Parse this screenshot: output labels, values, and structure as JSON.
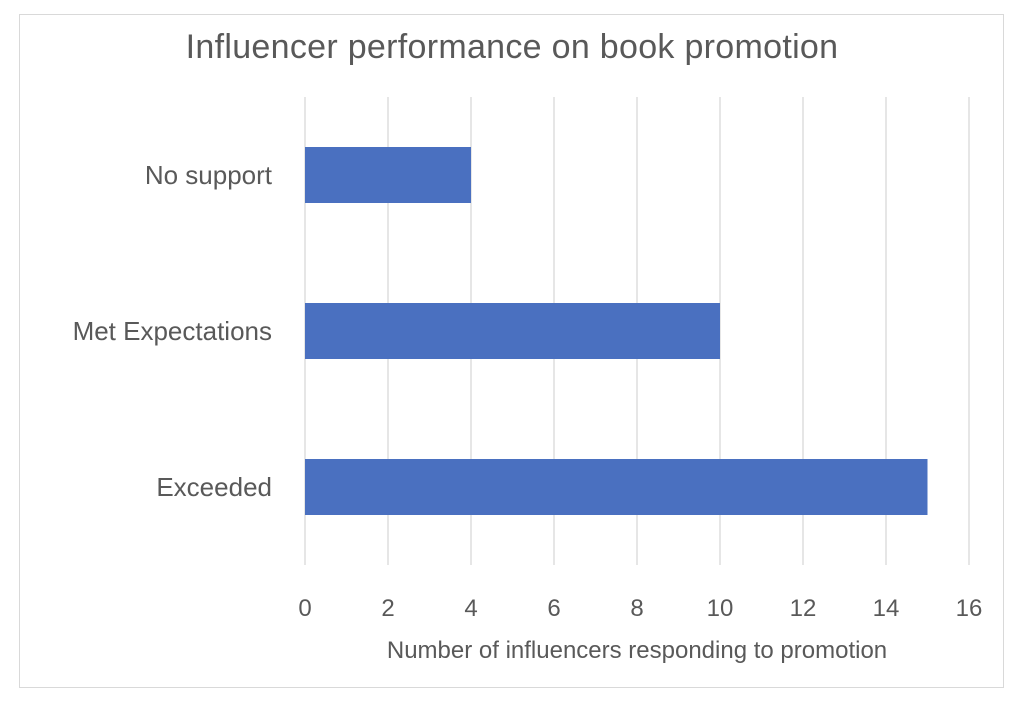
{
  "chart_data": {
    "type": "bar",
    "orientation": "horizontal",
    "title": "Influencer performance on book promotion",
    "categories": [
      "No support",
      "Met Expectations",
      "Exceeded"
    ],
    "values": [
      4,
      10,
      15
    ],
    "xlabel": "Number of influencers responding to promotion",
    "ylabel": "",
    "xlim": [
      0,
      16
    ],
    "xticks": [
      "0",
      "2",
      "4",
      "6",
      "8",
      "10",
      "12",
      "14",
      "16"
    ],
    "grid": "vertical",
    "legend": "none",
    "bar_color": "#4a70c0",
    "grid_color": "#d9d9d9"
  }
}
